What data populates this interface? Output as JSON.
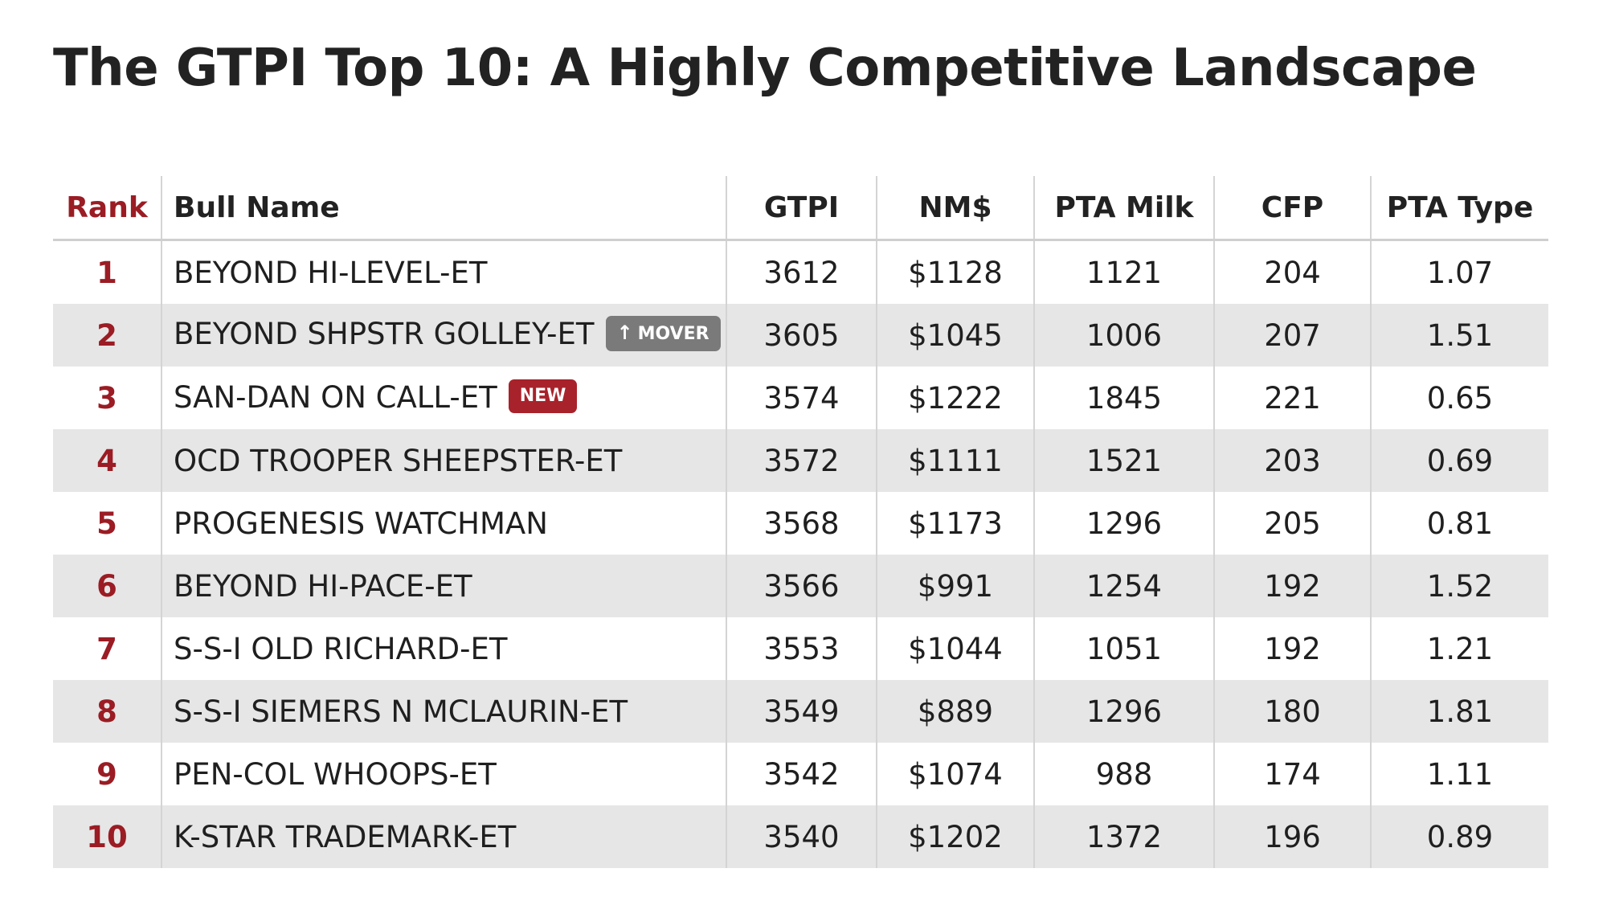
{
  "title": "The GTPI Top 10: A Highly Competitive Landscape",
  "table": {
    "headers": [
      "Rank",
      "Bull Name",
      "GTPI",
      "NM$",
      "PTA Milk",
      "CFP",
      "PTA Type"
    ],
    "rows": [
      {
        "rank": "1",
        "name": "BEYOND HI-LEVEL-ET",
        "badge": "",
        "gtpi": "3612",
        "nm": "$1128",
        "milk": "1121",
        "cfp": "204",
        "type": "1.07"
      },
      {
        "rank": "2",
        "name": "BEYOND SHPSTR GOLLEY-ET",
        "badge": "MOVER",
        "badge_icon": "↑",
        "gtpi": "3605",
        "nm": "$1045",
        "milk": "1006",
        "cfp": "207",
        "type": "1.51"
      },
      {
        "rank": "3",
        "name": "SAN-DAN ON CALL-ET",
        "badge": "NEW",
        "gtpi": "3574",
        "nm": "$1222",
        "milk": "1845",
        "cfp": "221",
        "type": "0.65"
      },
      {
        "rank": "4",
        "name": "OCD TROOPER SHEEPSTER-ET",
        "badge": "",
        "gtpi": "3572",
        "nm": "$1111",
        "milk": "1521",
        "cfp": "203",
        "type": "0.69"
      },
      {
        "rank": "5",
        "name": "PROGENESIS WATCHMAN",
        "badge": "",
        "gtpi": "3568",
        "nm": "$1173",
        "milk": "1296",
        "cfp": "205",
        "type": "0.81"
      },
      {
        "rank": "6",
        "name": "BEYOND HI-PACE-ET",
        "badge": "",
        "gtpi": "3566",
        "nm": "$991",
        "milk": "1254",
        "cfp": "192",
        "type": "1.52"
      },
      {
        "rank": "7",
        "name": "S-S-I OLD RICHARD-ET",
        "badge": "",
        "gtpi": "3553",
        "nm": "$1044",
        "milk": "1051",
        "cfp": "192",
        "type": "1.21"
      },
      {
        "rank": "8",
        "name": "S-S-I SIEMERS N MCLAURIN-ET",
        "badge": "",
        "gtpi": "3549",
        "nm": "$889",
        "milk": "1296",
        "cfp": "180",
        "type": "1.81"
      },
      {
        "rank": "9",
        "name": "PEN-COL WHOOPS-ET",
        "badge": "",
        "gtpi": "3542",
        "nm": "$1074",
        "milk": "988",
        "cfp": "174",
        "type": "1.11"
      },
      {
        "rank": "10",
        "name": "K-STAR TRADEMARK-ET",
        "badge": "",
        "gtpi": "3540",
        "nm": "$1202",
        "milk": "1372",
        "cfp": "196",
        "type": "0.89"
      }
    ]
  },
  "colors": {
    "accent_red": "#9b1c24",
    "badge_new": "#a8222b",
    "badge_mover": "#7a7a7a",
    "row_stripe": "#e6e6e6"
  }
}
